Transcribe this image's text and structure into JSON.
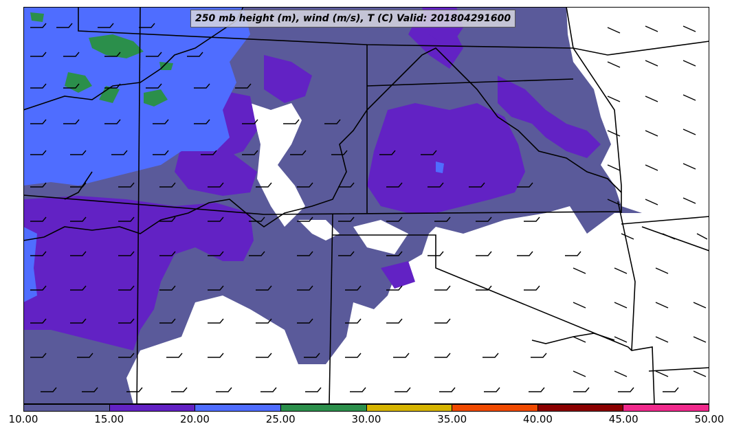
{
  "title": "250 mb height (m), wind (m/s), T (C) Valid: 201804291600",
  "colorbar": {
    "ticks": [
      "10.00",
      "15.00",
      "20.00",
      "25.00",
      "30.00",
      "35.00",
      "40.00",
      "45.00",
      "50.00"
    ],
    "colors": [
      "#5a5a9a",
      "#6222c4",
      "#4f6dff",
      "#2b8f4b",
      "#d6b400",
      "#f04a00",
      "#8b0000",
      "#f02a8c"
    ]
  },
  "map": {
    "region": "Central United States",
    "fill_colors": {
      "band_10_15": "#5a5a9a",
      "band_15_20": "#6222c4",
      "band_20_25": "#4f6dff",
      "band_25_30": "#2b8f4b",
      "below_range": "#ffffff"
    },
    "wind_barb_style": "black half and full barbs"
  }
}
